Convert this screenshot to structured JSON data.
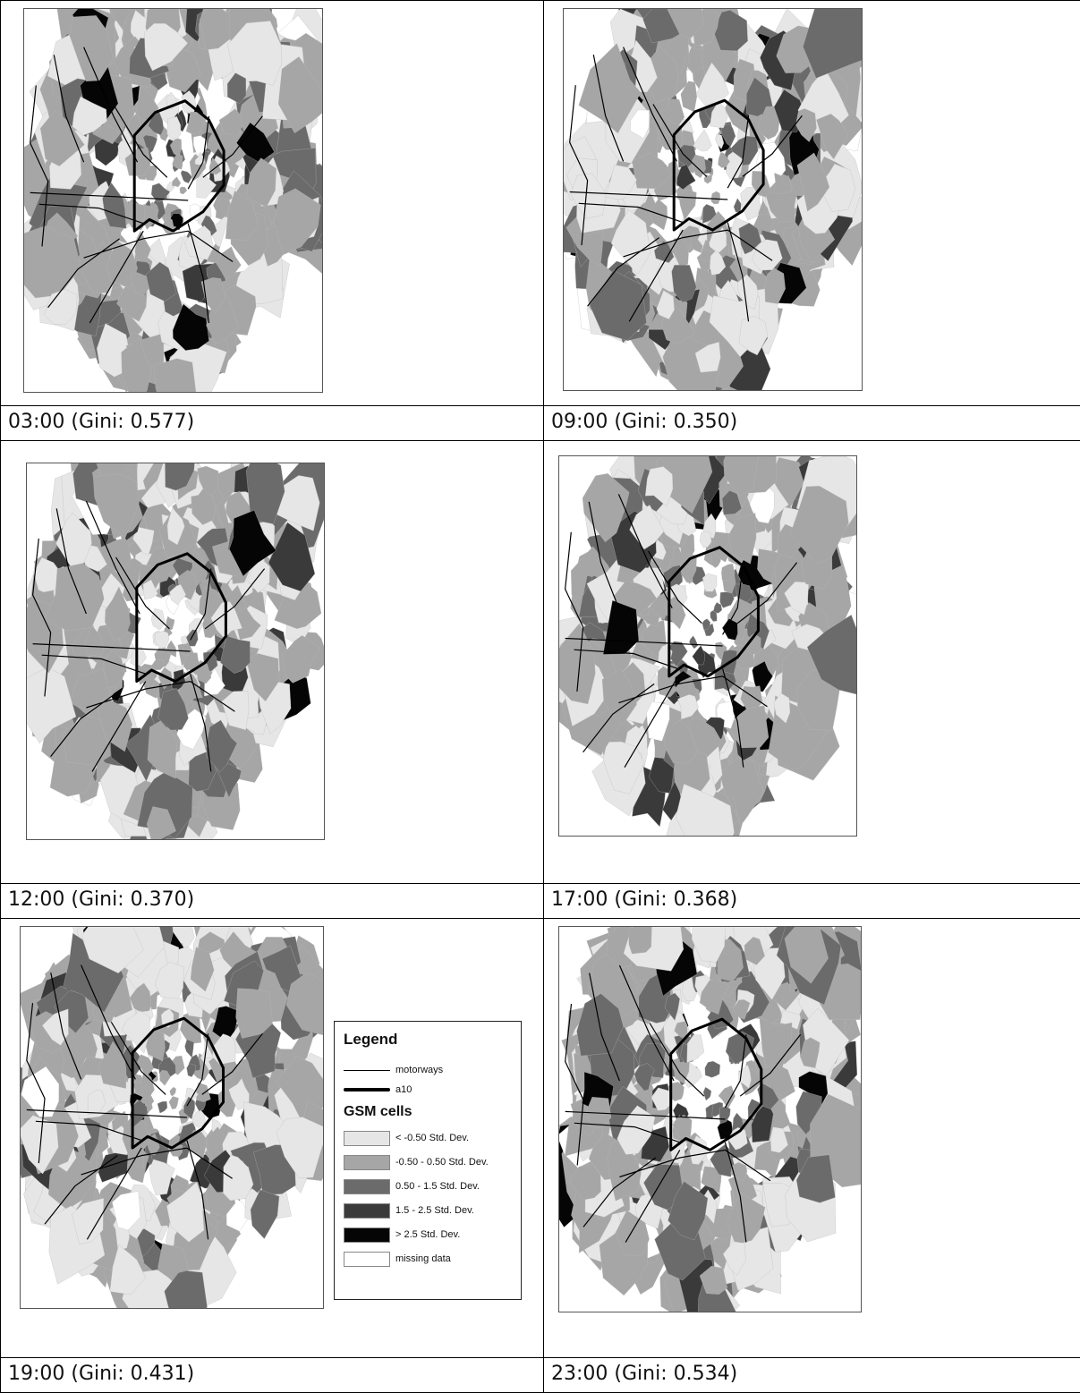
{
  "panels": [
    {
      "time": "03:00",
      "caption": "03:00 (Gini: 0.577)",
      "gini": 0.577
    },
    {
      "time": "09:00",
      "caption": "09:00 (Gini: 0.350)",
      "gini": 0.35
    },
    {
      "time": "12:00",
      "caption": "12:00 (Gini: 0.370)",
      "gini": 0.37
    },
    {
      "time": "17:00",
      "caption": "17:00 (Gini: 0.368)",
      "gini": 0.368
    },
    {
      "time": "19:00",
      "caption": "19:00 (Gini: 0.431)",
      "gini": 0.431
    },
    {
      "time": "23:00",
      "caption": "23:00 (Gini: 0.534)",
      "gini": 0.534
    }
  ],
  "legend": {
    "title": "Legend",
    "lines": [
      {
        "label": "motorways",
        "style": "thin"
      },
      {
        "label": "a10",
        "style": "thick"
      }
    ],
    "classes_title": "GSM cells",
    "classes": [
      {
        "label": "< -0.50 Std. Dev.",
        "color": "#e6e6e6"
      },
      {
        "label": "-0.50 - 0.50 Std. Dev.",
        "color": "#a6a6a6"
      },
      {
        "label": "0.50 - 1.5 Std. Dev.",
        "color": "#6b6b6b"
      },
      {
        "label": "1.5 - 2.5 Std. Dev.",
        "color": "#3a3a3a"
      },
      {
        "label": "> 2.5 Std. Dev.",
        "color": "#050505"
      },
      {
        "label": "missing data",
        "color": "#ffffff"
      }
    ]
  }
}
